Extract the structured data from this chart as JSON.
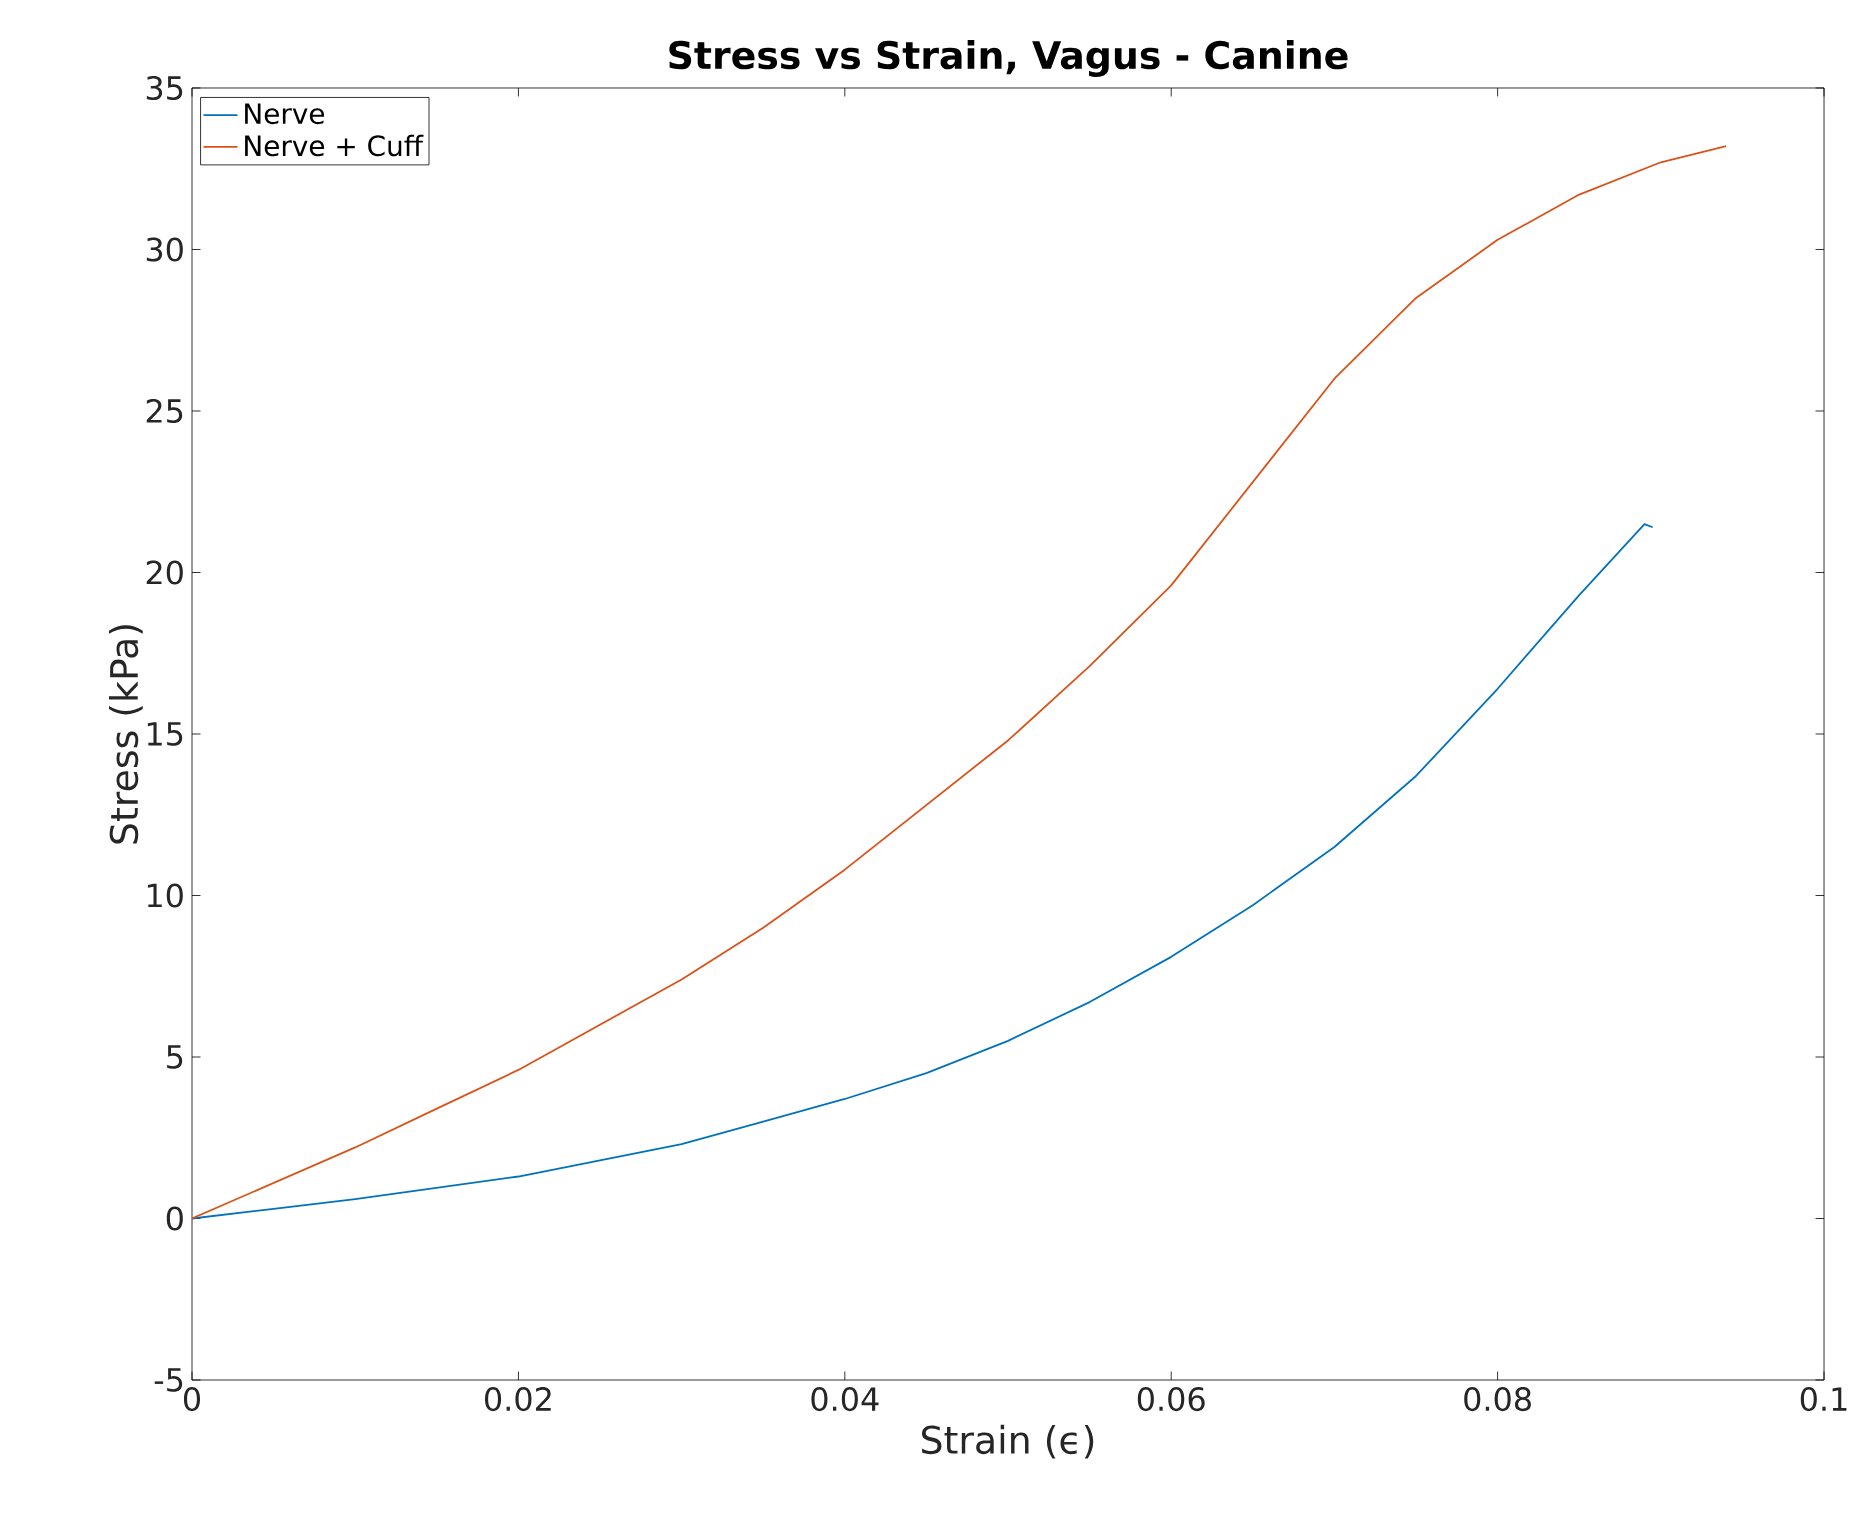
{
  "chart_data": {
    "type": "line",
    "title": "Stress vs Strain, Vagus - Canine",
    "xlabel": "Strain (ϵ)",
    "ylabel": "Stress (kPa)",
    "xlim": [
      0,
      0.1
    ],
    "ylim": [
      -5,
      35
    ],
    "xticks": [
      0,
      0.02,
      0.04,
      0.06,
      0.08,
      0.1
    ],
    "yticks": [
      -5,
      0,
      5,
      10,
      15,
      20,
      25,
      30,
      35
    ],
    "legend": "top left",
    "grid": false,
    "series": [
      {
        "name": "Nerve",
        "color": "#0072bd",
        "x": [
          0,
          0.005,
          0.01,
          0.015,
          0.02,
          0.025,
          0.03,
          0.035,
          0.04,
          0.045,
          0.05,
          0.055,
          0.06,
          0.065,
          0.07,
          0.075,
          0.08,
          0.085,
          0.089,
          0.0895
        ],
        "values": [
          0,
          0.3,
          0.6,
          0.95,
          1.3,
          1.8,
          2.3,
          3.0,
          3.7,
          4.5,
          5.5,
          6.7,
          8.1,
          9.7,
          11.5,
          13.7,
          16.4,
          19.3,
          21.5,
          21.4
        ]
      },
      {
        "name": "Nerve + Cuff",
        "color": "#d95319",
        "x": [
          0,
          0.005,
          0.01,
          0.015,
          0.02,
          0.025,
          0.03,
          0.035,
          0.04,
          0.045,
          0.05,
          0.055,
          0.06,
          0.065,
          0.07,
          0.075,
          0.08,
          0.085,
          0.09,
          0.094
        ],
        "values": [
          0,
          1.1,
          2.2,
          3.4,
          4.6,
          6.0,
          7.4,
          9.0,
          10.8,
          12.8,
          14.8,
          17.1,
          19.6,
          22.8,
          26.0,
          28.5,
          30.3,
          31.7,
          32.7,
          33.2
        ]
      }
    ]
  }
}
